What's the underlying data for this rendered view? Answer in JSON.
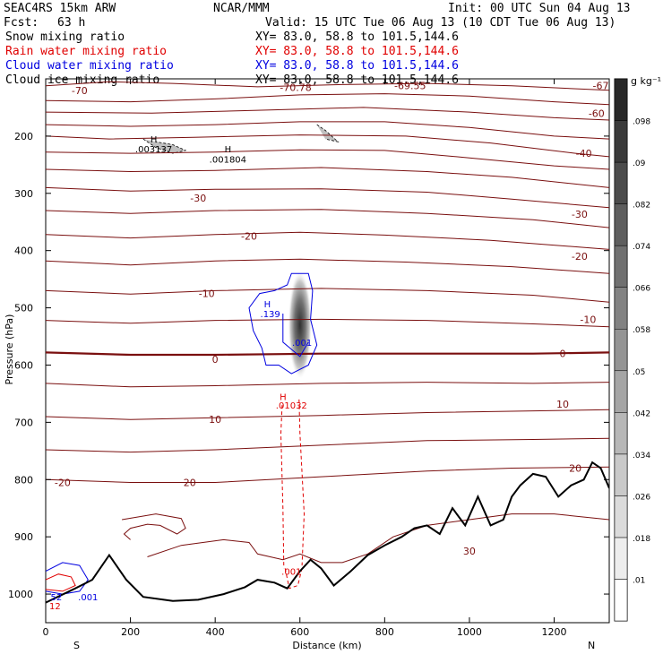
{
  "header": {
    "model": "SEAC4RS 15km ARW",
    "org": "NCAR/MMM",
    "init": "Init: 00 UTC Sun 04 Aug 13",
    "fcst_label": "Fcst:",
    "fcst_value": "63 h",
    "valid": "Valid: 15 UTC Tue 06 Aug 13 (10 CDT Tue 06 Aug 13)"
  },
  "fields": [
    {
      "name": "Snow mixing ratio",
      "xy": "XY=  83.0, 58.8 to 101.5,144.6",
      "color": "#000000"
    },
    {
      "name": "Rain water mixing ratio",
      "xy": "XY=  83.0, 58.8 to 101.5,144.6",
      "color": "#e00000"
    },
    {
      "name": "Cloud water mixing ratio",
      "xy": "XY=  83.0, 58.8 to 101.5,144.6",
      "color": "#0000e0"
    },
    {
      "name": "Cloud ice mixing ratio",
      "xy": "XY=  83.0, 58.8 to 101.5,144.6",
      "color": "#000000"
    }
  ],
  "colors": {
    "temperature": "#7a0f0f",
    "rain": "#e00000",
    "cloud_water": "#0000e0",
    "terrain": "#000000"
  },
  "chart_data": {
    "type": "contour-cross-section",
    "xlabel": "Distance (km)",
    "ylabel": "Pressure (hPa)",
    "xlim": [
      0,
      1330
    ],
    "ylim": [
      1050,
      100
    ],
    "x_ticks": [
      0,
      200,
      400,
      600,
      800,
      1000,
      1200
    ],
    "y_ticks": [
      200,
      300,
      400,
      500,
      600,
      700,
      800,
      900,
      1000
    ],
    "x_end_labels": {
      "left": "S",
      "right": "N"
    },
    "colorbar": {
      "unit": "g kg⁻¹",
      "levels": [
        ".01",
        ".018",
        ".026",
        ".034",
        ".042",
        ".05",
        ".058",
        ".066",
        ".074",
        ".082",
        ".09",
        ".098"
      ]
    },
    "isotherm_labels": [
      {
        "text": "-70",
        "x": 80,
        "p": 120
      },
      {
        "text": "-70.78",
        "x": 590,
        "p": 115
      },
      {
        "text": "-69.55",
        "x": 860,
        "p": 112
      },
      {
        "text": "-67",
        "x": 1310,
        "p": 112
      },
      {
        "text": "-60",
        "x": 1300,
        "p": 160
      },
      {
        "text": "-40",
        "x": 1270,
        "p": 230
      },
      {
        "text": "-30",
        "x": 360,
        "p": 308
      },
      {
        "text": "-30",
        "x": 1260,
        "p": 336
      },
      {
        "text": "-20",
        "x": 480,
        "p": 375
      },
      {
        "text": "-20",
        "x": 1260,
        "p": 410
      },
      {
        "text": "-10",
        "x": 380,
        "p": 475
      },
      {
        "text": "-10",
        "x": 1280,
        "p": 520
      },
      {
        "text": "0",
        "x": 400,
        "p": 590
      },
      {
        "text": "0",
        "x": 1220,
        "p": 580
      },
      {
        "text": "10",
        "x": 400,
        "p": 695
      },
      {
        "text": "10",
        "x": 1220,
        "p": 668
      },
      {
        "text": "20",
        "x": 340,
        "p": 805
      },
      {
        "text": "20",
        "x": 1250,
        "p": 780
      },
      {
        "text": "-20",
        "x": 40,
        "p": 805
      },
      {
        "text": "30",
        "x": 1000,
        "p": 925
      }
    ],
    "extrema_labels": [
      {
        "text": "H",
        "x": 255,
        "p": 205,
        "color": "#000000"
      },
      {
        "text": ".003137",
        "x": 255,
        "p": 222,
        "color": "#000000"
      },
      {
        "text": "H",
        "x": 430,
        "p": 222,
        "color": "#000000"
      },
      {
        "text": ".001804",
        "x": 430,
        "p": 240,
        "color": "#000000"
      },
      {
        "text": "H",
        "x": 523,
        "p": 493,
        "color": "#0000e0"
      },
      {
        "text": ".139",
        "x": 530,
        "p": 510,
        "color": "#0000e0"
      },
      {
        "text": ".001",
        "x": 605,
        "p": 560,
        "color": "#0000e0"
      },
      {
        "text": "H",
        "x": 560,
        "p": 655,
        "color": "#e00000"
      },
      {
        "text": ".01032",
        "x": 580,
        "p": 670,
        "color": "#e00000"
      },
      {
        "text": ".001",
        "x": 580,
        "p": 960,
        "color": "#e00000"
      },
      {
        "text": ".001",
        "x": 100,
        "p": 1005,
        "color": "#0000e0"
      },
      {
        "text": "52",
        "x": 25,
        "p": 1005,
        "color": "#0000e0"
      },
      {
        "text": "12",
        "x": 22,
        "p": 1020,
        "color": "#e00000"
      }
    ],
    "isotherms": [
      [
        [
          0,
          112
        ],
        [
          150,
          105
        ],
        [
          300,
          108
        ],
        [
          500,
          114
        ],
        [
          700,
          110
        ],
        [
          900,
          108
        ],
        [
          1100,
          112
        ],
        [
          1330,
          120
        ]
      ],
      [
        [
          0,
          138
        ],
        [
          200,
          140
        ],
        [
          400,
          135
        ],
        [
          600,
          128
        ],
        [
          800,
          126
        ],
        [
          1000,
          130
        ],
        [
          1200,
          140
        ],
        [
          1330,
          145
        ]
      ],
      [
        [
          0,
          158
        ],
        [
          250,
          160
        ],
        [
          500,
          155
        ],
        [
          750,
          150
        ],
        [
          1000,
          158
        ],
        [
          1200,
          168
        ],
        [
          1330,
          172
        ]
      ],
      [
        [
          0,
          180
        ],
        [
          200,
          183
        ],
        [
          400,
          180
        ],
        [
          600,
          175
        ],
        [
          800,
          175
        ],
        [
          1000,
          185
        ],
        [
          1200,
          200
        ],
        [
          1330,
          205
        ]
      ],
      [
        [
          0,
          200
        ],
        [
          150,
          205
        ],
        [
          350,
          202
        ],
        [
          600,
          198
        ],
        [
          850,
          200
        ],
        [
          1050,
          212
        ],
        [
          1250,
          230
        ],
        [
          1330,
          236
        ]
      ],
      [
        [
          0,
          228
        ],
        [
          200,
          230
        ],
        [
          400,
          228
        ],
        [
          600,
          224
        ],
        [
          800,
          225
        ],
        [
          1000,
          238
        ],
        [
          1200,
          252
        ],
        [
          1330,
          258
        ]
      ],
      [
        [
          0,
          258
        ],
        [
          200,
          262
        ],
        [
          400,
          260
        ],
        [
          650,
          255
        ],
        [
          900,
          262
        ],
        [
          1100,
          272
        ],
        [
          1330,
          290
        ]
      ],
      [
        [
          0,
          290
        ],
        [
          200,
          296
        ],
        [
          400,
          293
        ],
        [
          650,
          292
        ],
        [
          900,
          298
        ],
        [
          1100,
          310
        ],
        [
          1330,
          325
        ]
      ],
      [
        [
          0,
          330
        ],
        [
          200,
          335
        ],
        [
          400,
          330
        ],
        [
          650,
          328
        ],
        [
          900,
          335
        ],
        [
          1150,
          346
        ],
        [
          1330,
          360
        ]
      ],
      [
        [
          0,
          372
        ],
        [
          200,
          378
        ],
        [
          400,
          372
        ],
        [
          600,
          368
        ],
        [
          800,
          373
        ],
        [
          1050,
          382
        ],
        [
          1330,
          398
        ]
      ],
      [
        [
          0,
          418
        ],
        [
          200,
          425
        ],
        [
          400,
          418
        ],
        [
          600,
          415
        ],
        [
          850,
          420
        ],
        [
          1100,
          428
        ],
        [
          1330,
          440
        ]
      ],
      [
        [
          0,
          470
        ],
        [
          200,
          476
        ],
        [
          400,
          470
        ],
        [
          650,
          466
        ],
        [
          900,
          470
        ],
        [
          1150,
          478
        ],
        [
          1330,
          490
        ]
      ],
      [
        [
          0,
          522
        ],
        [
          200,
          527
        ],
        [
          400,
          522
        ],
        [
          650,
          520
        ],
        [
          900,
          522
        ],
        [
          1150,
          528
        ],
        [
          1330,
          533
        ]
      ],
      [
        [
          0,
          578
        ],
        [
          200,
          582
        ],
        [
          400,
          582
        ],
        [
          650,
          580
        ],
        [
          900,
          580
        ],
        [
          1150,
          580
        ],
        [
          1330,
          578
        ]
      ],
      [
        [
          0,
          632
        ],
        [
          200,
          638
        ],
        [
          400,
          636
        ],
        [
          650,
          632
        ],
        [
          900,
          630
        ],
        [
          1150,
          632
        ],
        [
          1330,
          630
        ]
      ],
      [
        [
          0,
          690
        ],
        [
          200,
          695
        ],
        [
          400,
          692
        ],
        [
          650,
          688
        ],
        [
          900,
          683
        ],
        [
          1150,
          680
        ],
        [
          1330,
          678
        ]
      ],
      [
        [
          0,
          748
        ],
        [
          200,
          752
        ],
        [
          400,
          748
        ],
        [
          650,
          740
        ],
        [
          900,
          732
        ],
        [
          1150,
          730
        ],
        [
          1330,
          728
        ]
      ],
      [
        [
          0,
          800
        ],
        [
          200,
          805
        ],
        [
          400,
          805
        ],
        [
          650,
          795
        ],
        [
          900,
          785
        ],
        [
          1100,
          780
        ],
        [
          1330,
          778
        ]
      ],
      [
        [
          180,
          870
        ],
        [
          260,
          860
        ],
        [
          320,
          868
        ],
        [
          330,
          885
        ],
        [
          310,
          895
        ],
        [
          270,
          880
        ],
        [
          240,
          878
        ],
        [
          200,
          885
        ],
        [
          185,
          895
        ],
        [
          200,
          905
        ]
      ],
      [
        [
          240,
          935
        ],
        [
          320,
          915
        ],
        [
          420,
          905
        ],
        [
          480,
          910
        ],
        [
          500,
          930
        ],
        [
          560,
          940
        ],
        [
          600,
          930
        ],
        [
          650,
          945
        ],
        [
          700,
          945
        ],
        [
          760,
          930
        ],
        [
          820,
          900
        ],
        [
          900,
          880
        ],
        [
          1000,
          870
        ],
        [
          1100,
          860
        ],
        [
          1200,
          860
        ],
        [
          1330,
          870
        ]
      ]
    ],
    "terrain": [
      [
        0,
        1015
      ],
      [
        70,
        990
      ],
      [
        110,
        975
      ],
      [
        150,
        932
      ],
      [
        190,
        975
      ],
      [
        230,
        1005
      ],
      [
        300,
        1012
      ],
      [
        360,
        1010
      ],
      [
        420,
        1000
      ],
      [
        470,
        988
      ],
      [
        500,
        975
      ],
      [
        540,
        980
      ],
      [
        570,
        990
      ],
      [
        600,
        960
      ],
      [
        625,
        940
      ],
      [
        650,
        955
      ],
      [
        680,
        985
      ],
      [
        720,
        960
      ],
      [
        760,
        932
      ],
      [
        800,
        915
      ],
      [
        840,
        900
      ],
      [
        870,
        885
      ],
      [
        900,
        880
      ],
      [
        930,
        895
      ],
      [
        960,
        850
      ],
      [
        990,
        880
      ],
      [
        1020,
        830
      ],
      [
        1050,
        880
      ],
      [
        1080,
        870
      ],
      [
        1100,
        830
      ],
      [
        1120,
        810
      ],
      [
        1150,
        790
      ],
      [
        1180,
        795
      ],
      [
        1210,
        830
      ],
      [
        1240,
        810
      ],
      [
        1270,
        800
      ],
      [
        1290,
        770
      ],
      [
        1310,
        780
      ],
      [
        1330,
        815
      ]
    ],
    "rain_bands": [
      [
        [
          558,
          670
        ],
        [
          555,
          720
        ],
        [
          560,
          850
        ],
        [
          562,
          955
        ]
      ],
      [
        [
          598,
          660
        ],
        [
          600,
          720
        ],
        [
          610,
          860
        ],
        [
          605,
          950
        ]
      ],
      [
        [
          565,
          955
        ],
        [
          575,
          990
        ],
        [
          595,
          985
        ],
        [
          605,
          955
        ]
      ]
    ],
    "cloud_water": [
      [
        [
          510,
          570
        ],
        [
          490,
          540
        ],
        [
          480,
          500
        ],
        [
          505,
          475
        ],
        [
          540,
          470
        ],
        [
          570,
          460
        ],
        [
          580,
          440
        ],
        [
          620,
          440
        ],
        [
          630,
          470
        ],
        [
          625,
          520
        ],
        [
          640,
          565
        ],
        [
          620,
          600
        ],
        [
          580,
          615
        ],
        [
          550,
          600
        ],
        [
          520,
          600
        ],
        [
          510,
          570
        ]
      ],
      [
        [
          560,
          510
        ],
        [
          560,
          560
        ],
        [
          600,
          585
        ],
        [
          620,
          560
        ]
      ]
    ],
    "snow_patches": [
      [
        [
          230,
          205
        ],
        [
          260,
          220
        ],
        [
          300,
          230
        ],
        [
          330,
          225
        ],
        [
          300,
          215
        ],
        [
          260,
          210
        ]
      ],
      [
        [
          640,
          180
        ],
        [
          660,
          190
        ],
        [
          690,
          210
        ],
        [
          660,
          205
        ]
      ]
    ],
    "ice_max": {
      "x": 600,
      "p": 530,
      "rx": 28,
      "rp": 95
    }
  }
}
